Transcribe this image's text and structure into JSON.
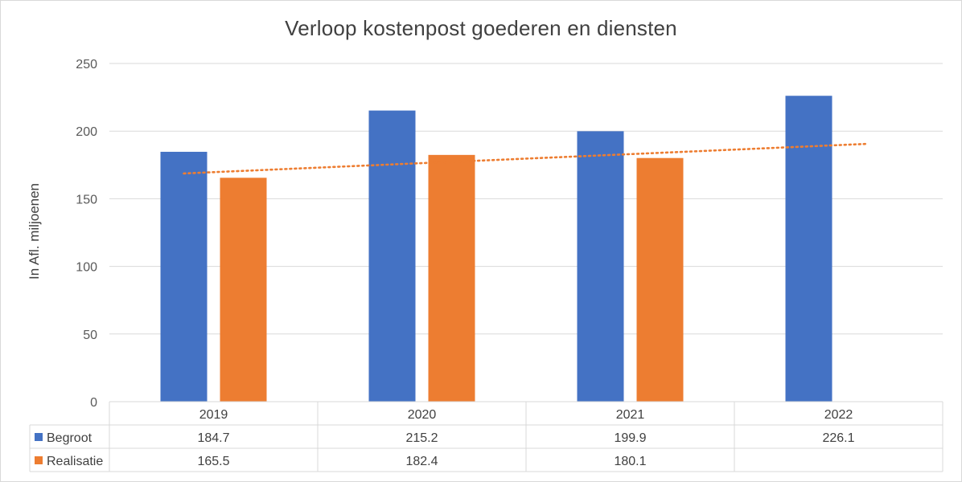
{
  "chart_data": {
    "type": "bar",
    "title": "Verloop kostenpost goederen en diensten",
    "ylabel": "In Afl. miljoenen",
    "xlabel": "",
    "categories": [
      "2019",
      "2020",
      "2021",
      "2022"
    ],
    "ylim": [
      0,
      250
    ],
    "yticks": [
      "0",
      "50",
      "100",
      "150",
      "200",
      "250"
    ],
    "grid": true,
    "legend": "data-table",
    "series": [
      {
        "name": "Begroot",
        "color": "#4472c4",
        "values": [
          184.7,
          215.2,
          199.9,
          226.1
        ],
        "labels": [
          "184.7",
          "215.2",
          "199.9",
          "226.1"
        ]
      },
      {
        "name": "Realisatie",
        "color": "#ed7d31",
        "values": [
          165.5,
          182.4,
          180.1,
          null
        ],
        "labels": [
          "165.5",
          "182.4",
          "180.1",
          ""
        ]
      }
    ],
    "trendline": {
      "type": "linear",
      "style": "dotted",
      "color": "#ed7d31"
    }
  }
}
